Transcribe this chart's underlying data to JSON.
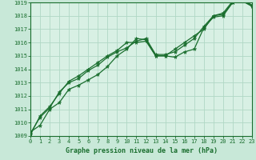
{
  "xlabel": "Graphe pression niveau de la mer (hPa)",
  "bg_color": "#c8e8d8",
  "plot_bg_color": "#d8f0e4",
  "grid_color": "#b0d8c4",
  "line_color": "#1a6e2e",
  "spine_color": "#1a6e2e",
  "ylim": [
    1009,
    1019
  ],
  "xlim": [
    0,
    23
  ],
  "yticks": [
    1009,
    1010,
    1011,
    1012,
    1013,
    1014,
    1015,
    1016,
    1017,
    1018,
    1019
  ],
  "xticks": [
    0,
    1,
    2,
    3,
    4,
    5,
    6,
    7,
    8,
    9,
    10,
    11,
    12,
    13,
    14,
    15,
    16,
    17,
    18,
    19,
    20,
    21,
    22,
    23
  ],
  "line1_x": [
    0,
    1,
    2,
    3,
    4,
    5,
    6,
    7,
    8,
    9,
    10,
    11,
    12,
    13,
    14,
    15,
    16,
    17,
    18,
    19,
    20,
    21,
    22,
    23
  ],
  "line1_y": [
    1009.3,
    1009.8,
    1011.0,
    1011.5,
    1012.5,
    1012.8,
    1013.2,
    1013.6,
    1014.2,
    1015.0,
    1015.5,
    1016.3,
    1016.2,
    1015.0,
    1015.0,
    1014.9,
    1015.3,
    1015.5,
    1017.1,
    1017.9,
    1018.0,
    1019.0,
    1019.1,
    1018.7
  ],
  "line2_x": [
    0,
    1,
    2,
    3,
    4,
    5,
    6,
    7,
    8,
    9,
    10,
    11,
    12,
    13,
    14,
    15,
    16,
    17,
    18,
    19,
    20,
    21,
    22,
    23
  ],
  "line2_y": [
    1009.2,
    1010.4,
    1011.1,
    1012.3,
    1013.0,
    1013.3,
    1013.9,
    1014.3,
    1014.9,
    1015.3,
    1015.6,
    1016.1,
    1016.3,
    1015.1,
    1015.1,
    1015.3,
    1015.8,
    1016.3,
    1017.2,
    1018.0,
    1018.1,
    1019.0,
    1019.15,
    1018.75
  ],
  "line3_x": [
    0,
    1,
    2,
    3,
    4,
    5,
    6,
    7,
    8,
    9,
    10,
    11,
    12,
    13,
    14,
    15,
    16,
    17,
    18,
    19,
    20,
    21,
    22,
    23
  ],
  "line3_y": [
    1009.1,
    1010.5,
    1011.2,
    1012.2,
    1013.1,
    1013.5,
    1014.0,
    1014.5,
    1015.0,
    1015.4,
    1016.0,
    1016.0,
    1016.1,
    1015.0,
    1015.0,
    1015.5,
    1016.0,
    1016.5,
    1017.0,
    1018.0,
    1018.2,
    1019.1,
    1019.2,
    1018.8
  ]
}
